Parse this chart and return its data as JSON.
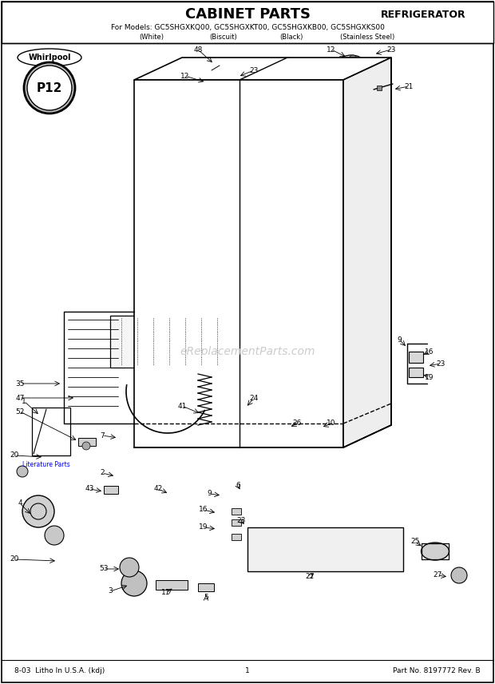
{
  "title": "CABINET PARTS",
  "title_right": "REFRIGERATOR",
  "subtitle": "For Models: GC5SHGXKQ00, GC5SHGXKT00, GC5SHGXKB00, GC5SHGXKS00",
  "footer_left": "8-03  Litho In U.S.A. (kdj)",
  "footer_center": "1",
  "footer_right": "Part No. 8197772 Rev. B",
  "watermark": "eReplacementParts.com",
  "bg_color": "#ffffff",
  "line_color": "#000000"
}
